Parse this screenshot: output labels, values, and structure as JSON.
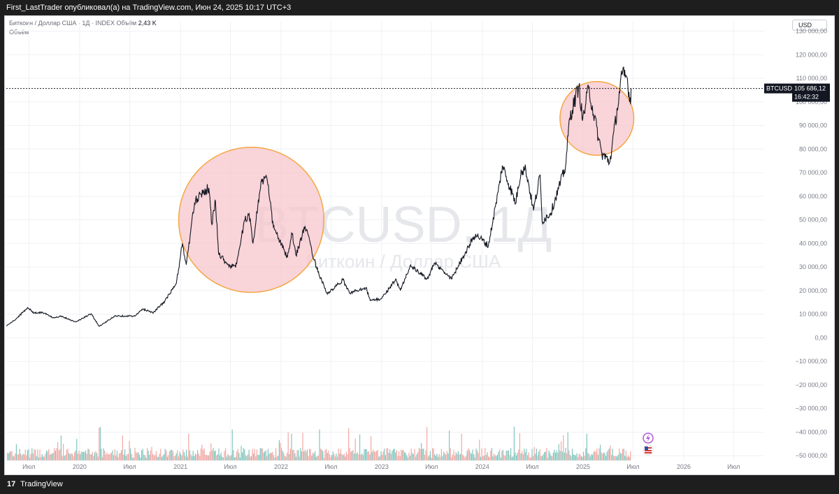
{
  "header": {
    "published_line": "First_LastTrader опубликовал(а) на TradingView.com, Июн 24, 2025 10:17 UTC+3"
  },
  "legend": {
    "symbol_line": "Биткоин / Доллар США · 1Д · INDEX",
    "volume_label": "Объём",
    "volume_value": "2,43 K",
    "volume_pane_label": "Объём"
  },
  "currency_button": "USD",
  "watermark": {
    "ticker": "BTCUSD, 1Д",
    "name": "Биткоин / Доллар США"
  },
  "price_tag": {
    "symbol": "BTCUSD",
    "price": "105 686,12",
    "countdown": "16:42:32"
  },
  "footer": {
    "brand": "TradingView",
    "logo_mark": "17"
  },
  "colors": {
    "line": "#131722",
    "circle_fill": "#f7c6cc",
    "circle_stroke": "#f5a742",
    "volume_up": "#7fc6bd",
    "volume_down": "#f2a7a3",
    "axis_text": "#787b86",
    "price_tag_bg": "#131722"
  },
  "icons": [
    "flash-icon",
    "us-flag-icon"
  ],
  "chart_data": {
    "type": "line",
    "title": "",
    "y_axis_position": "right",
    "y_ticks": [
      130000,
      120000,
      110000,
      100000,
      90000,
      80000,
      70000,
      60000,
      50000,
      40000,
      30000,
      20000,
      10000,
      0,
      -10000,
      -20000,
      -30000,
      -40000,
      -50000
    ],
    "y_tick_labels": [
      "130 000,00",
      "120 000,00",
      "110 000,00",
      "100 000,00",
      "90 000,00",
      "80 000,00",
      "70 000,00",
      "60 000,00",
      "50 000,00",
      "40 000,00",
      "30 000,00",
      "20 000,00",
      "10 000,00",
      "0,00",
      "−10 000,00",
      "−20 000,00",
      "−30 000,00",
      "−40 000,00",
      "−50 000,00"
    ],
    "ylim": [
      -52000,
      134000
    ],
    "x_ticks": [
      {
        "label": "Июл",
        "date": "2019-07-01"
      },
      {
        "label": "2020",
        "date": "2020-01-01"
      },
      {
        "label": "Июл",
        "date": "2020-07-01"
      },
      {
        "label": "2021",
        "date": "2021-01-01"
      },
      {
        "label": "Июл",
        "date": "2021-07-01"
      },
      {
        "label": "2022",
        "date": "2022-01-01"
      },
      {
        "label": "Июл",
        "date": "2022-07-01"
      },
      {
        "label": "2023",
        "date": "2023-01-01"
      },
      {
        "label": "Июл",
        "date": "2023-07-01"
      },
      {
        "label": "2024",
        "date": "2024-01-01"
      },
      {
        "label": "Июл",
        "date": "2024-07-01"
      },
      {
        "label": "2025",
        "date": "2025-01-01"
      },
      {
        "label": "Июл",
        "date": "2025-07-01"
      },
      {
        "label": "2026",
        "date": "2026-01-01"
      },
      {
        "label": "Июл",
        "date": "2026-07-01"
      }
    ],
    "xlim": [
      "2019-04-10",
      "2026-10-20"
    ],
    "last_price": 105686.12,
    "series": [
      {
        "points": [
          [
            "2019-04-10",
            5000
          ],
          [
            "2019-05-15",
            7900
          ],
          [
            "2019-06-26",
            12800
          ],
          [
            "2019-07-20",
            10500
          ],
          [
            "2019-08-20",
            10800
          ],
          [
            "2019-09-25",
            8500
          ],
          [
            "2019-10-26",
            9200
          ],
          [
            "2019-12-18",
            6700
          ],
          [
            "2020-02-12",
            10200
          ],
          [
            "2020-03-12",
            4900
          ],
          [
            "2020-05-10",
            9300
          ],
          [
            "2020-07-20",
            9200
          ],
          [
            "2020-08-17",
            12200
          ],
          [
            "2020-09-25",
            10700
          ],
          [
            "2020-11-05",
            15500
          ],
          [
            "2020-12-17",
            23000
          ],
          [
            "2021-01-08",
            40000
          ],
          [
            "2021-01-22",
            31000
          ],
          [
            "2021-02-21",
            57000
          ],
          [
            "2021-03-13",
            61000
          ],
          [
            "2021-04-14",
            63500
          ],
          [
            "2021-04-25",
            48000
          ],
          [
            "2021-05-08",
            58000
          ],
          [
            "2021-05-19",
            36000
          ],
          [
            "2021-06-22",
            31000
          ],
          [
            "2021-07-20",
            29800
          ],
          [
            "2021-08-23",
            50000
          ],
          [
            "2021-09-07",
            52600
          ],
          [
            "2021-09-21",
            40000
          ],
          [
            "2021-10-20",
            66000
          ],
          [
            "2021-11-10",
            68000
          ],
          [
            "2021-12-04",
            47000
          ],
          [
            "2022-01-24",
            34000
          ],
          [
            "2022-02-10",
            44000
          ],
          [
            "2022-02-24",
            35000
          ],
          [
            "2022-03-29",
            47400
          ],
          [
            "2022-05-09",
            30000
          ],
          [
            "2022-06-18",
            18500
          ],
          [
            "2022-08-14",
            24500
          ],
          [
            "2022-09-06",
            19000
          ],
          [
            "2022-11-05",
            21300
          ],
          [
            "2022-11-21",
            15800
          ],
          [
            "2022-12-31",
            16500
          ],
          [
            "2023-02-20",
            24700
          ],
          [
            "2023-03-10",
            20000
          ],
          [
            "2023-04-14",
            30500
          ],
          [
            "2023-06-15",
            25000
          ],
          [
            "2023-07-13",
            31500
          ],
          [
            "2023-09-11",
            25000
          ],
          [
            "2023-10-24",
            34500
          ],
          [
            "2023-12-08",
            44000
          ],
          [
            "2024-01-23",
            39000
          ],
          [
            "2024-02-28",
            62000
          ],
          [
            "2024-03-14",
            73000
          ],
          [
            "2024-05-01",
            57000
          ],
          [
            "2024-05-21",
            71000
          ],
          [
            "2024-06-07",
            71500
          ],
          [
            "2024-07-05",
            54000
          ],
          [
            "2024-07-29",
            69000
          ],
          [
            "2024-08-05",
            49500
          ],
          [
            "2024-09-06",
            53000
          ],
          [
            "2024-10-29",
            72500
          ],
          [
            "2024-11-13",
            93000
          ],
          [
            "2024-12-17",
            107000
          ],
          [
            "2024-12-30",
            92000
          ],
          [
            "2025-01-21",
            106000
          ],
          [
            "2025-02-27",
            84000
          ],
          [
            "2025-03-10",
            78000
          ],
          [
            "2025-04-08",
            74500
          ],
          [
            "2025-05-22",
            111500
          ],
          [
            "2025-06-09",
            110500
          ],
          [
            "2025-06-22",
            99000
          ],
          [
            "2025-06-24",
            105686.12
          ]
        ]
      }
    ],
    "highlight_circles": [
      {
        "center_date": "2021-09-15",
        "center_value": 50000,
        "range_from": "2020-12-30",
        "range_to": "2022-06-10"
      },
      {
        "center_date": "2025-02-20",
        "center_value": 93000,
        "range_from": "2024-10-15",
        "range_to": "2025-07-10"
      }
    ],
    "volume_pane": {
      "label": "Объём",
      "note": "daily volume bars along the bottom, shared scale shown only by the right axis"
    }
  }
}
